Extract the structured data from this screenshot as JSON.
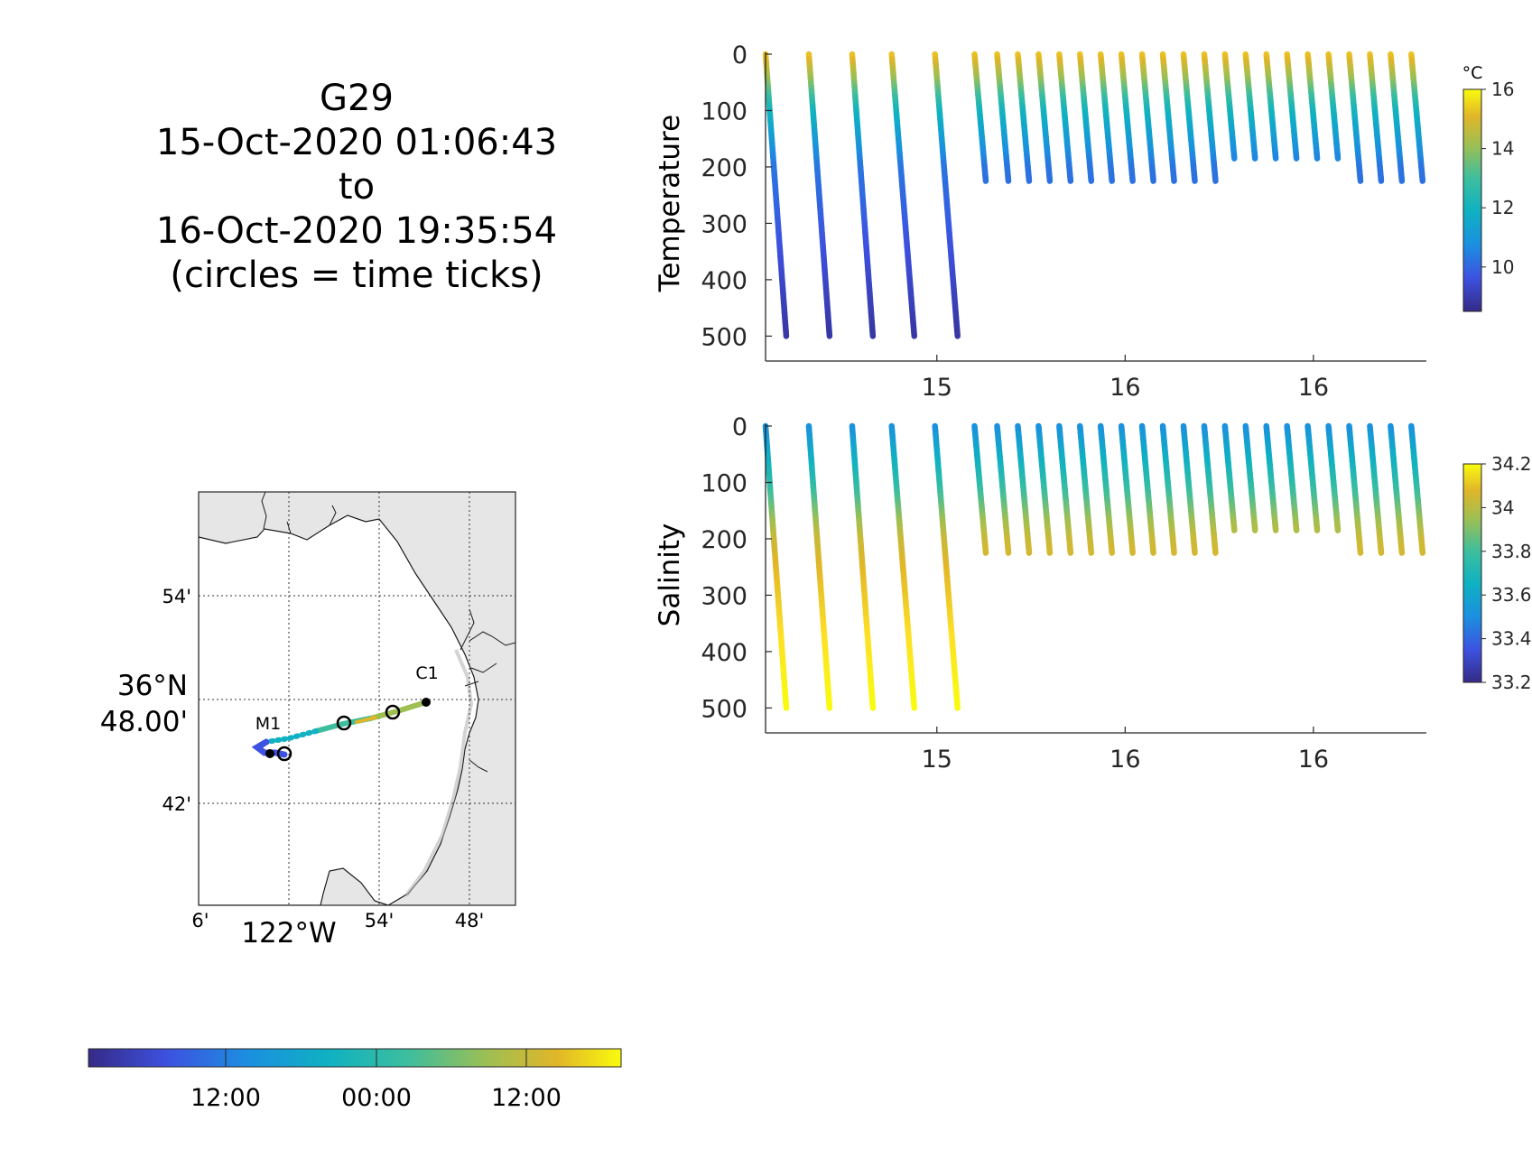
{
  "title": {
    "lines": [
      "G29",
      "15-Oct-2020 01:06:43",
      "to",
      "16-Oct-2020 19:35:54",
      "(circles = time ticks)"
    ]
  },
  "colors": {
    "parula": [
      "#352a87",
      "#3d52e0",
      "#1b8fe0",
      "#0fb1c2",
      "#3dbe9e",
      "#9ebf52",
      "#e1b628",
      "#fde025",
      "#f9fb0e"
    ],
    "land": "#e6e6e6",
    "water": "#ffffff",
    "axis": "#262626"
  },
  "map": {
    "type": "map",
    "lat_ticks": [
      "54'",
      "42'"
    ],
    "lat_center_label": [
      "36°N",
      "48.00'"
    ],
    "lon_ticks": [
      "6'",
      "54'",
      "48'"
    ],
    "lon_center_label": "122°W",
    "station_labels": [
      "M1",
      "C1"
    ],
    "colorbar_ticks": [
      "12:00",
      "00:00",
      "12:00"
    ]
  },
  "chart_data": [
    {
      "type": "scatter",
      "name": "temperature-profiles",
      "title": "",
      "xlabel": "",
      "ylabel": "Temperature",
      "x_tick_labels": [
        "15",
        "16",
        "16"
      ],
      "x_tick_values": [
        15.0,
        15.5,
        16.0
      ],
      "xlim": [
        14.545,
        16.3
      ],
      "y_tick_labels": [
        "0",
        "100",
        "200",
        "300",
        "400",
        "500"
      ],
      "ylim": [
        0,
        525
      ],
      "y_reversed": true,
      "colorbar": {
        "unit": "°C",
        "ticks": [
          "16",
          "14",
          "12",
          "10"
        ],
        "range": [
          8.5,
          16.0
        ]
      },
      "profiles": [
        {
          "t_start": 14.545,
          "t_end": 14.6,
          "max_depth": 500
        },
        {
          "t_start": 14.66,
          "t_end": 14.715,
          "max_depth": 500
        },
        {
          "t_start": 14.775,
          "t_end": 14.83,
          "max_depth": 500
        },
        {
          "t_start": 14.88,
          "t_end": 14.94,
          "max_depth": 500
        },
        {
          "t_start": 14.995,
          "t_end": 15.055,
          "max_depth": 500
        },
        {
          "t_start": 15.1,
          "t_end": 15.13,
          "max_depth": 225
        },
        {
          "t_start": 15.16,
          "t_end": 15.19,
          "max_depth": 225
        },
        {
          "t_start": 15.215,
          "t_end": 15.245,
          "max_depth": 225
        },
        {
          "t_start": 15.27,
          "t_end": 15.3,
          "max_depth": 225
        },
        {
          "t_start": 15.325,
          "t_end": 15.355,
          "max_depth": 225
        },
        {
          "t_start": 15.38,
          "t_end": 15.41,
          "max_depth": 225
        },
        {
          "t_start": 15.435,
          "t_end": 15.465,
          "max_depth": 225
        },
        {
          "t_start": 15.49,
          "t_end": 15.52,
          "max_depth": 225
        },
        {
          "t_start": 15.545,
          "t_end": 15.575,
          "max_depth": 225
        },
        {
          "t_start": 15.6,
          "t_end": 15.63,
          "max_depth": 225
        },
        {
          "t_start": 15.655,
          "t_end": 15.685,
          "max_depth": 225
        },
        {
          "t_start": 15.71,
          "t_end": 15.74,
          "max_depth": 225
        },
        {
          "t_start": 15.765,
          "t_end": 15.79,
          "max_depth": 185
        },
        {
          "t_start": 15.82,
          "t_end": 15.845,
          "max_depth": 185
        },
        {
          "t_start": 15.875,
          "t_end": 15.9,
          "max_depth": 185
        },
        {
          "t_start": 15.93,
          "t_end": 15.955,
          "max_depth": 185
        },
        {
          "t_start": 15.985,
          "t_end": 16.01,
          "max_depth": 185
        },
        {
          "t_start": 16.04,
          "t_end": 16.065,
          "max_depth": 185
        },
        {
          "t_start": 16.095,
          "t_end": 16.125,
          "max_depth": 225
        },
        {
          "t_start": 16.15,
          "t_end": 16.18,
          "max_depth": 225
        },
        {
          "t_start": 16.205,
          "t_end": 16.235,
          "max_depth": 225
        },
        {
          "t_start": 16.26,
          "t_end": 16.29,
          "max_depth": 225
        }
      ],
      "value_profile": {
        "surface": 14.5,
        "at_100": 11.5,
        "at_200": 10.0,
        "at_500": 8.8
      }
    },
    {
      "type": "scatter",
      "name": "salinity-profiles",
      "title": "",
      "xlabel": "",
      "ylabel": "Salinity",
      "x_tick_labels": [
        "15",
        "16",
        "16"
      ],
      "x_tick_values": [
        15.0,
        15.5,
        16.0
      ],
      "xlim": [
        14.545,
        16.3
      ],
      "y_tick_labels": [
        "0",
        "100",
        "200",
        "300",
        "400",
        "500"
      ],
      "ylim": [
        0,
        525
      ],
      "y_reversed": true,
      "colorbar": {
        "unit": "",
        "ticks": [
          "34.2",
          "34",
          "33.8",
          "33.6",
          "33.4",
          "33.2"
        ],
        "range": [
          33.2,
          34.2
        ]
      },
      "same_profile_times_as": "temperature-profiles",
      "value_profile": {
        "surface": 33.45,
        "at_100": 33.65,
        "at_200": 33.9,
        "at_500": 34.2
      }
    }
  ]
}
